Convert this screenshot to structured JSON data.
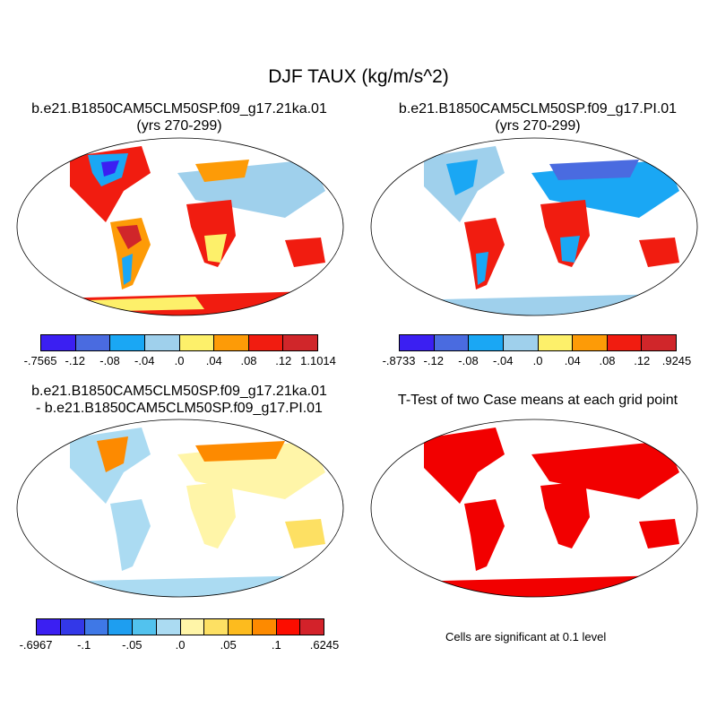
{
  "main_title": "DJF TAUX (kg/m/s^2)",
  "panels": [
    {
      "title_line1": "b.e21.B1850CAM5CLM50SP.f09_g17.21ka.01",
      "title_line2": "(yrs 270-299)",
      "colorbar": {
        "colors": [
          "#3b1ff2",
          "#4a6be0",
          "#1aa7f4",
          "#9fd0ec",
          "#fdf06a",
          "#fd9b07",
          "#f11c10",
          "#d0262a"
        ],
        "labels": [
          "-.7565",
          "-.12",
          "-.08",
          "-.04",
          ".0",
          ".04",
          ".08",
          ".12",
          "1.1014"
        ]
      }
    },
    {
      "title_line1": "b.e21.B1850CAM5CLM50SP.f09_g17.PI.01",
      "title_line2": "(yrs 270-299)",
      "colorbar": {
        "colors": [
          "#3b1ff2",
          "#4a6be0",
          "#1aa7f4",
          "#9fd0ec",
          "#fdf06a",
          "#fd9b07",
          "#f11c10",
          "#d0262a"
        ],
        "labels": [
          "-.8733",
          "-.12",
          "-.08",
          "-.04",
          ".0",
          ".04",
          ".08",
          ".12",
          ".9245"
        ]
      }
    },
    {
      "title_line1": "b.e21.B1850CAM5CLM50SP.f09_g17.21ka.01",
      "title_line2": "- b.e21.B1850CAM5CLM50SP.f09_g17.PI.01",
      "colorbar": {
        "colors": [
          "#3b1ff2",
          "#3338e8",
          "#3f78e6",
          "#1e9ef0",
          "#52c2ee",
          "#abdbf2",
          "#fff5a8",
          "#fde063",
          "#fdbb1e",
          "#fd8a00",
          "#fc0d00",
          "#d3222a"
        ],
        "labels": [
          "-.6967",
          "-.1",
          "-.05",
          ".0",
          ".05",
          ".1",
          ".6245"
        ]
      }
    },
    {
      "title_line1": "T-Test of two Case means at each grid point",
      "note": "Cells are significant at 0.1 level"
    }
  ]
}
